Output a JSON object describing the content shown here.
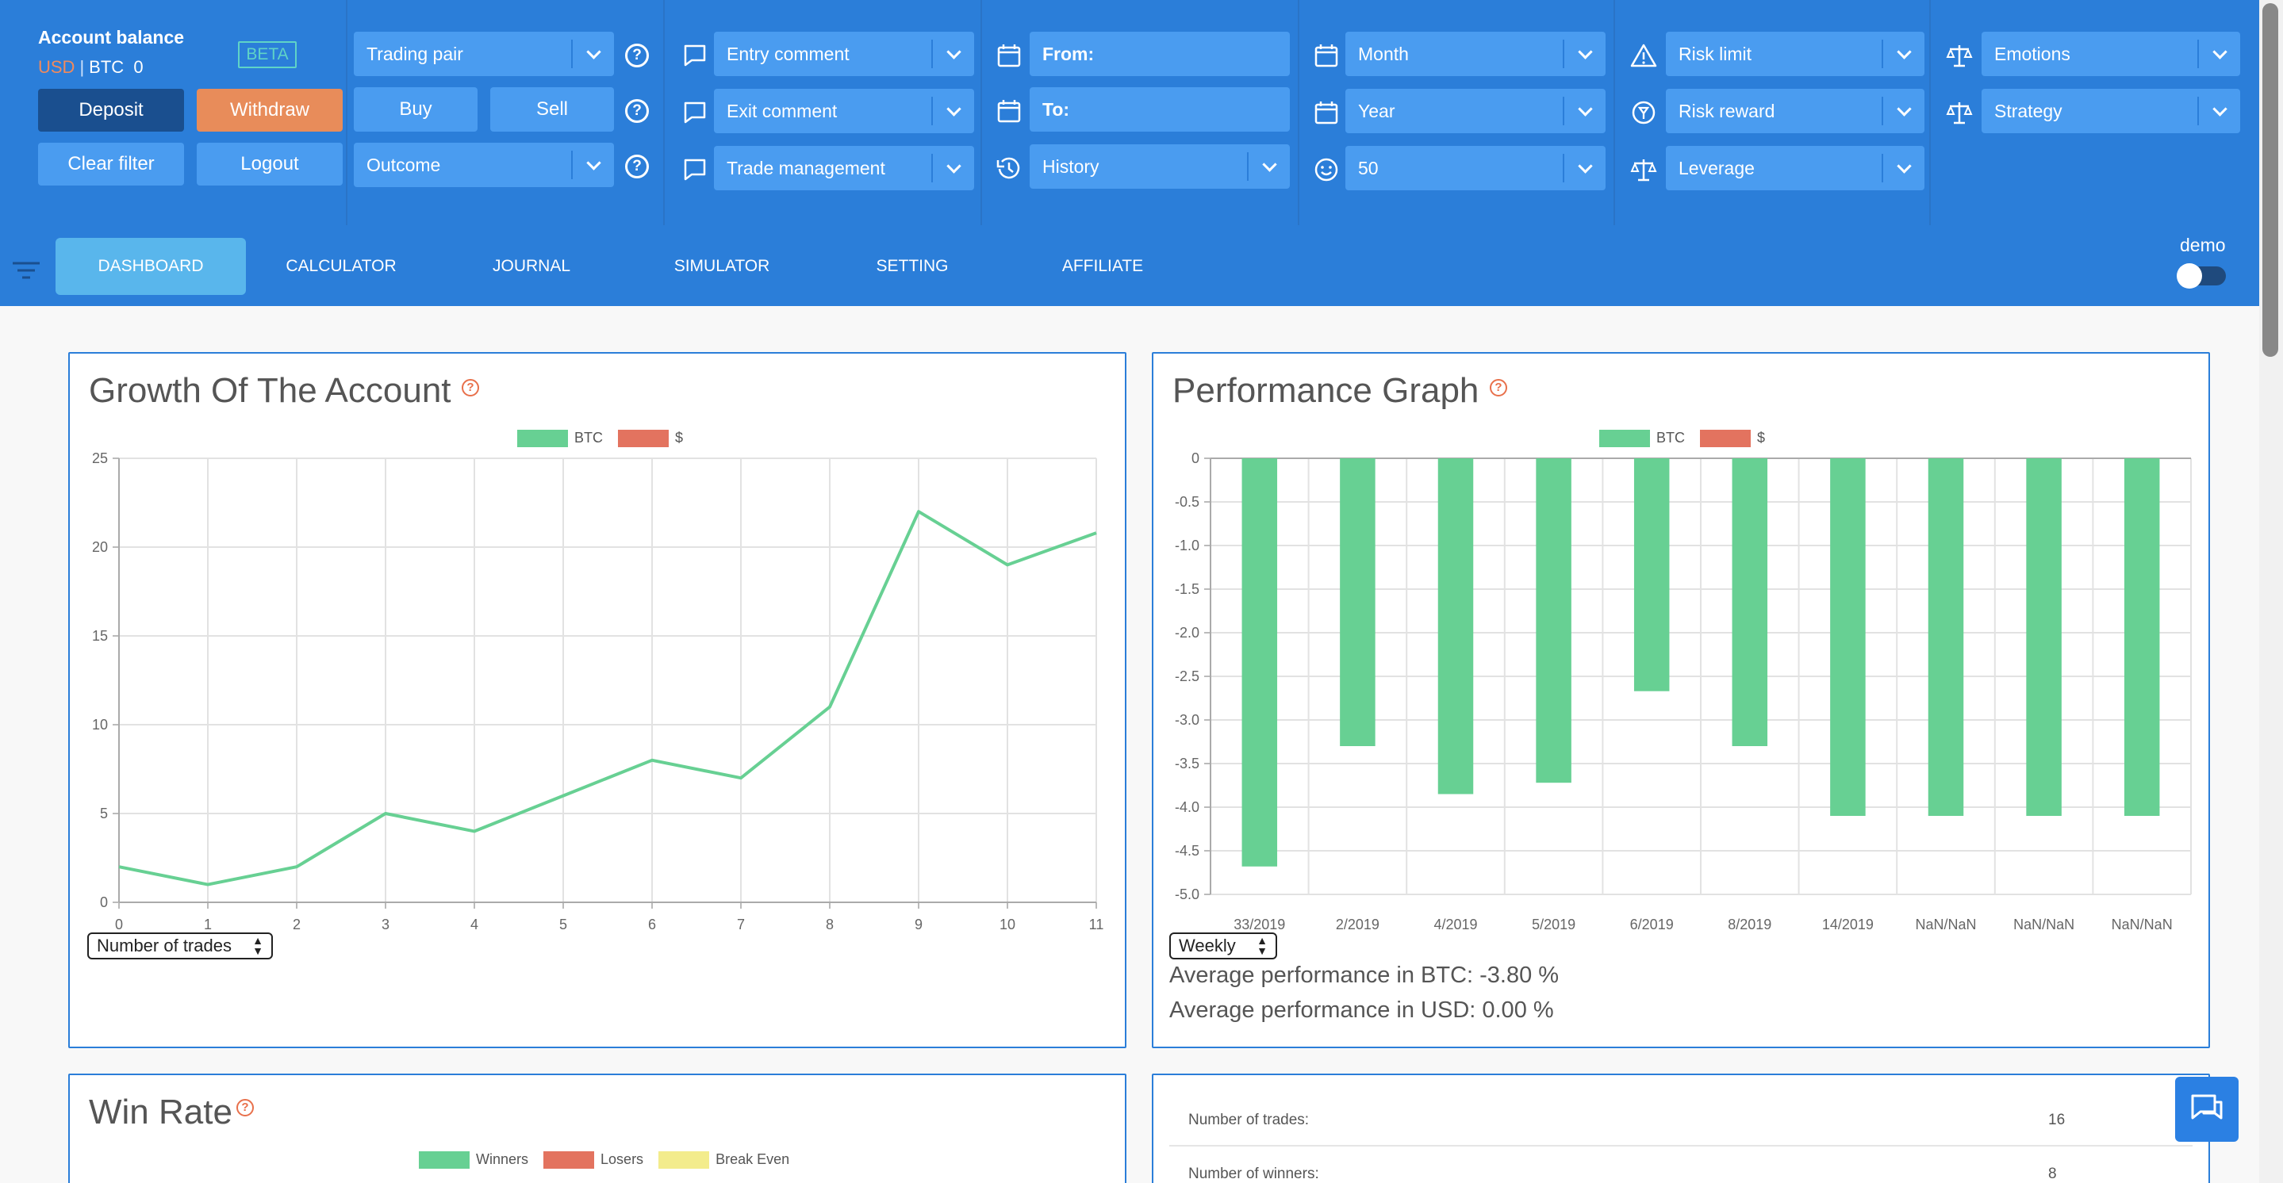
{
  "account": {
    "title": "Account balance",
    "usd": "USD",
    "sep": "|",
    "btc": "BTC",
    "btc_value": "0",
    "beta": "BETA"
  },
  "buttons": {
    "deposit": "Deposit",
    "withdraw": "Withdraw",
    "clear_filter": "Clear filter",
    "logout": "Logout",
    "buy": "Buy",
    "sell": "Sell"
  },
  "filters": {
    "trading_pair": "Trading pair",
    "outcome": "Outcome",
    "entry_comment": "Entry comment",
    "exit_comment": "Exit comment",
    "trade_management": "Trade management",
    "from": "From:",
    "to": "To:",
    "history": "History",
    "month": "Month",
    "year": "Year",
    "count": "50",
    "risk_limit": "Risk limit",
    "risk_reward": "Risk reward",
    "leverage": "Leverage",
    "emotions": "Emotions",
    "strategy": "Strategy"
  },
  "colors": {
    "accent": "#2b7ed9",
    "btc": "#67d093",
    "usd": "#e3735f",
    "breakeven": "#f3ec8c"
  },
  "nav": {
    "tabs": [
      "DASHBOARD",
      "CALCULATOR",
      "JOURNAL",
      "SIMULATOR",
      "SETTING",
      "AFFILIATE"
    ],
    "active": "DASHBOARD",
    "demo": "demo"
  },
  "panels": {
    "growth": {
      "title": "Growth Of The Account",
      "select": "Number of trades"
    },
    "performance": {
      "title": "Performance Graph",
      "select": "Weekly",
      "avg_btc": "Average performance in BTC: -3.80 %",
      "avg_usd": "Average performance in USD: 0.00 %"
    },
    "winrate": {
      "title": "Win Rate",
      "legend": [
        "Winners",
        "Losers",
        "Break Even"
      ]
    },
    "stats": [
      {
        "label": "Number of trades:",
        "value": "16"
      },
      {
        "label": "Number of winners:",
        "value": "8"
      }
    ]
  },
  "chart_data": [
    {
      "type": "line",
      "legend": [
        "BTC",
        "$"
      ],
      "x": [
        0,
        1,
        2,
        3,
        4,
        5,
        6,
        7,
        8,
        9,
        10,
        11
      ],
      "series": [
        {
          "name": "BTC",
          "values": [
            2,
            1,
            2,
            5,
            4,
            6,
            8,
            7,
            11,
            22,
            19,
            20.8
          ]
        }
      ],
      "xlim": [
        0,
        11
      ],
      "ylim": [
        0,
        25
      ],
      "yticks": [
        0,
        5,
        10,
        15,
        20,
        25
      ],
      "grid": true,
      "legend_position": "top"
    },
    {
      "type": "bar",
      "legend": [
        "BTC",
        "$"
      ],
      "categories": [
        "33/2019",
        "2/2019",
        "4/2019",
        "5/2019",
        "6/2019",
        "8/2019",
        "14/2019",
        "NaN/NaN",
        "NaN/NaN",
        "NaN/NaN"
      ],
      "series": [
        {
          "name": "BTC",
          "values": [
            -4.68,
            -3.3,
            -3.85,
            -3.72,
            -2.67,
            -3.3,
            -4.1,
            -4.1,
            -4.1,
            -4.1
          ]
        }
      ],
      "ylim": [
        -5.0,
        0
      ],
      "yticks": [
        "0",
        "-0.5",
        "-1.0",
        "-1.5",
        "-2.0",
        "-2.5",
        "-3.0",
        "-3.5",
        "-4.0",
        "-4.5",
        "-5.0"
      ],
      "grid": true,
      "legend_position": "top"
    }
  ]
}
